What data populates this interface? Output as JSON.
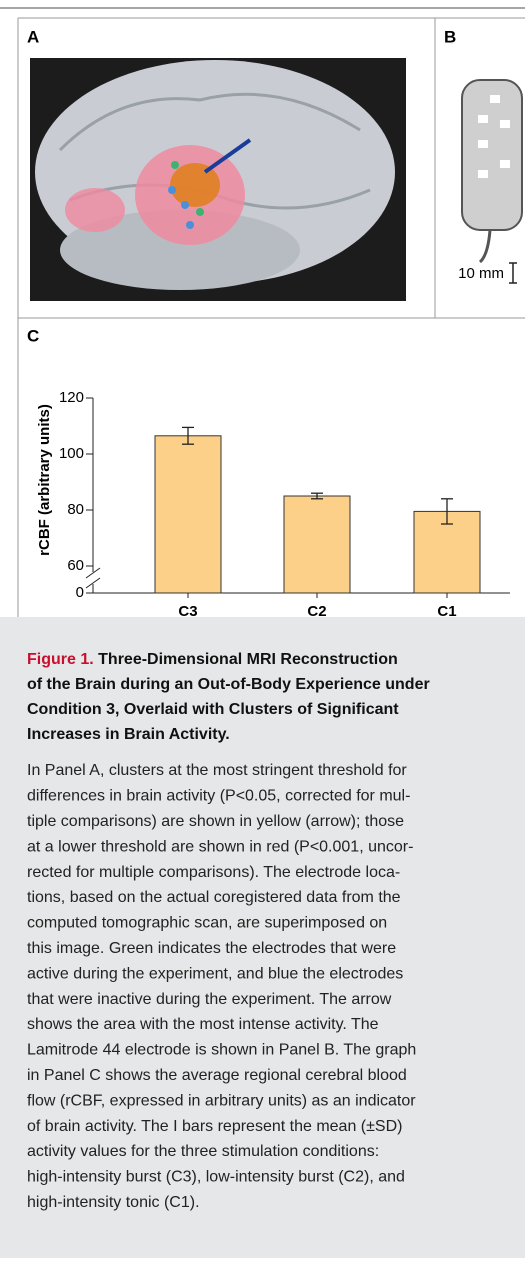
{
  "panels": {
    "a": "A",
    "b": "B",
    "c": "C",
    "scale": "10 mm"
  },
  "chart_data": {
    "type": "bar",
    "y_label": "rCBF (arbitrary units)",
    "categories": [
      "C3",
      "C2",
      "C1"
    ],
    "values": [
      106.5,
      85,
      79.5
    ],
    "errors": [
      3,
      1,
      4.5
    ],
    "color": "#fdd08a",
    "ylim": [
      60,
      120
    ],
    "yticks": [
      0,
      60,
      80,
      100,
      120
    ],
    "axis_break": true
  },
  "caption": {
    "label": "Figure 1.",
    "title_lines": [
      "Three-Dimensional MRI Reconstruction",
      "of the Brain during an Out-of-Body Experience under",
      "Condition 3, Overlaid with Clusters of Significant",
      "Increases in Brain Activity."
    ],
    "body_lines": [
      "In Panel A, clusters at the most stringent threshold for",
      "differences in brain activity (P<0.05, corrected for mul-",
      "tiple comparisons) are shown in yellow (arrow); those",
      "at a lower threshold are shown in red (P<0.001, uncor-",
      "rected for multiple comparisons). The electrode loca-",
      "tions, based on the actual coregistered data from the",
      "computed tomographic scan, are superimposed on",
      "this image. Green indicates the electrodes that were",
      "active during the experiment, and blue the electrodes",
      "that were inactive during the experiment. The arrow",
      "shows the area with the most intense activity. The",
      "Lamitrode 44 electrode is shown in Panel B. The graph",
      "in Panel C shows the average regional cerebral blood",
      "flow (rCBF, expressed in arbitrary units) as an indicator",
      "of brain activity. The I bars represent the mean (±SD)",
      "activity values for the three stimulation conditions:",
      "high-intensity burst (C3), low-intensity burst (C2), and",
      "high-intensity tonic (C1)."
    ]
  }
}
